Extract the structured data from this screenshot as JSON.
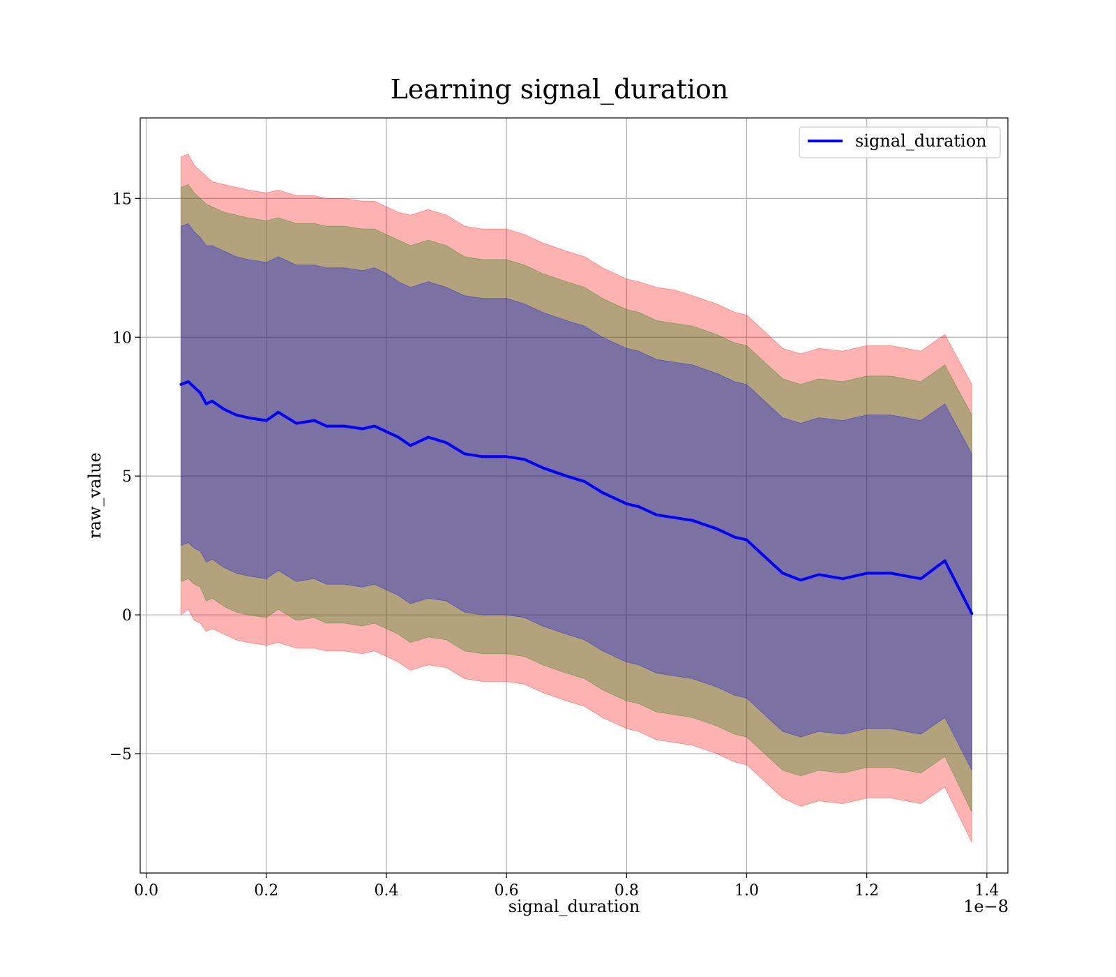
{
  "chart_data": {
    "type": "line",
    "title": "Learning signal_duration",
    "xlabel": "signal_duration",
    "ylabel": "raw_value",
    "x_offset_label": "1e−8",
    "xlim": [
      -0.01,
      1.435
    ],
    "ylim": [
      -9.3,
      17.9
    ],
    "x_ticks": [
      0.0,
      0.2,
      0.4,
      0.6,
      0.8,
      1.0,
      1.2,
      1.4
    ],
    "x_tick_labels": [
      "0.0",
      "0.2",
      "0.4",
      "0.6",
      "0.8",
      "1.0",
      "1.2",
      "1.4"
    ],
    "y_ticks": [
      -5,
      0,
      5,
      10,
      15
    ],
    "y_tick_labels": [
      "−5",
      "0",
      "5",
      "10",
      "15"
    ],
    "grid": true,
    "legend_position": "top-right",
    "x": [
      0.058,
      0.07,
      0.08,
      0.09,
      0.1,
      0.11,
      0.13,
      0.15,
      0.17,
      0.2,
      0.22,
      0.25,
      0.28,
      0.3,
      0.33,
      0.36,
      0.38,
      0.4,
      0.42,
      0.44,
      0.47,
      0.5,
      0.53,
      0.56,
      0.6,
      0.63,
      0.66,
      0.7,
      0.73,
      0.76,
      0.8,
      0.82,
      0.85,
      0.88,
      0.91,
      0.95,
      0.98,
      1.0,
      1.02,
      1.04,
      1.06,
      1.09,
      1.12,
      1.16,
      1.2,
      1.24,
      1.29,
      1.33,
      1.375
    ],
    "series": [
      {
        "name": "signal_duration",
        "color": "#0000ff",
        "values": [
          8.3,
          8.4,
          8.2,
          8.0,
          7.6,
          7.7,
          7.4,
          7.2,
          7.1,
          7.0,
          7.3,
          6.9,
          7.0,
          6.8,
          6.8,
          6.7,
          6.8,
          6.6,
          6.4,
          6.1,
          6.4,
          6.2,
          5.8,
          5.7,
          5.7,
          5.6,
          5.3,
          5.0,
          4.8,
          4.4,
          4.0,
          3.9,
          3.6,
          3.5,
          3.4,
          3.1,
          2.8,
          2.7,
          2.3,
          1.9,
          1.5,
          1.25,
          1.45,
          1.3,
          1.5,
          1.5,
          1.3,
          1.95,
          0.05
        ]
      }
    ],
    "bands": [
      {
        "color": "#ff0000",
        "opacity": 0.3,
        "upper": [
          16.5,
          16.6,
          16.2,
          16.0,
          15.8,
          15.6,
          15.5,
          15.4,
          15.3,
          15.2,
          15.3,
          15.1,
          15.1,
          15.0,
          15.0,
          14.9,
          14.9,
          14.7,
          14.5,
          14.4,
          14.6,
          14.4,
          14.0,
          13.9,
          13.9,
          13.7,
          13.4,
          13.1,
          12.9,
          12.5,
          12.1,
          12.0,
          11.8,
          11.7,
          11.5,
          11.2,
          10.9,
          10.8,
          10.4,
          10.0,
          9.6,
          9.4,
          9.6,
          9.5,
          9.7,
          9.7,
          9.5,
          10.1,
          8.3
        ],
        "lower": [
          0.0,
          0.2,
          -0.2,
          -0.3,
          -0.6,
          -0.5,
          -0.7,
          -0.9,
          -1.0,
          -1.1,
          -1.0,
          -1.2,
          -1.2,
          -1.3,
          -1.3,
          -1.4,
          -1.3,
          -1.5,
          -1.7,
          -2.0,
          -1.8,
          -1.9,
          -2.3,
          -2.4,
          -2.4,
          -2.5,
          -2.8,
          -3.1,
          -3.3,
          -3.7,
          -4.1,
          -4.2,
          -4.5,
          -4.6,
          -4.7,
          -5.0,
          -5.3,
          -5.4,
          -5.8,
          -6.2,
          -6.6,
          -6.9,
          -6.7,
          -6.8,
          -6.6,
          -6.6,
          -6.8,
          -6.2,
          -8.2
        ]
      },
      {
        "color": "#008000",
        "opacity": 0.3,
        "upper": [
          15.4,
          15.5,
          15.2,
          15.0,
          14.8,
          14.7,
          14.5,
          14.4,
          14.3,
          14.2,
          14.3,
          14.1,
          14.1,
          14.0,
          14.0,
          13.9,
          13.9,
          13.7,
          13.5,
          13.3,
          13.5,
          13.3,
          12.9,
          12.8,
          12.8,
          12.6,
          12.3,
          12.0,
          11.8,
          11.4,
          11.0,
          10.9,
          10.6,
          10.5,
          10.4,
          10.1,
          9.8,
          9.7,
          9.3,
          8.9,
          8.5,
          8.3,
          8.5,
          8.4,
          8.6,
          8.6,
          8.4,
          9.0,
          7.2
        ],
        "lower": [
          1.2,
          1.3,
          1.1,
          1.0,
          0.5,
          0.6,
          0.3,
          0.1,
          0.0,
          -0.1,
          0.2,
          -0.2,
          -0.1,
          -0.3,
          -0.3,
          -0.4,
          -0.3,
          -0.5,
          -0.7,
          -1.0,
          -0.8,
          -0.9,
          -1.3,
          -1.4,
          -1.4,
          -1.5,
          -1.8,
          -2.1,
          -2.3,
          -2.7,
          -3.1,
          -3.2,
          -3.5,
          -3.6,
          -3.7,
          -4.0,
          -4.3,
          -4.4,
          -4.8,
          -5.2,
          -5.6,
          -5.8,
          -5.6,
          -5.7,
          -5.5,
          -5.5,
          -5.7,
          -5.1,
          -7.1
        ]
      },
      {
        "color": "#0000ff",
        "opacity": 0.3,
        "upper": [
          14.0,
          14.1,
          13.8,
          13.6,
          13.3,
          13.3,
          13.1,
          12.9,
          12.8,
          12.7,
          12.9,
          12.6,
          12.6,
          12.5,
          12.5,
          12.4,
          12.5,
          12.3,
          12.0,
          11.8,
          12.0,
          11.8,
          11.5,
          11.4,
          11.4,
          11.2,
          10.9,
          10.6,
          10.4,
          10.0,
          9.6,
          9.5,
          9.2,
          9.1,
          9.0,
          8.7,
          8.4,
          8.3,
          7.9,
          7.5,
          7.1,
          6.9,
          7.1,
          7.0,
          7.2,
          7.2,
          7.0,
          7.6,
          5.8
        ],
        "lower": [
          2.5,
          2.6,
          2.4,
          2.3,
          1.9,
          2.0,
          1.7,
          1.5,
          1.4,
          1.3,
          1.6,
          1.2,
          1.3,
          1.1,
          1.1,
          1.0,
          1.1,
          0.9,
          0.7,
          0.4,
          0.6,
          0.5,
          0.1,
          0.0,
          0.0,
          -0.1,
          -0.4,
          -0.7,
          -0.9,
          -1.3,
          -1.7,
          -1.8,
          -2.1,
          -2.2,
          -2.3,
          -2.6,
          -2.9,
          -3.0,
          -3.4,
          -3.8,
          -4.2,
          -4.4,
          -4.2,
          -4.3,
          -4.1,
          -4.1,
          -4.3,
          -3.7,
          -5.6
        ]
      }
    ]
  }
}
